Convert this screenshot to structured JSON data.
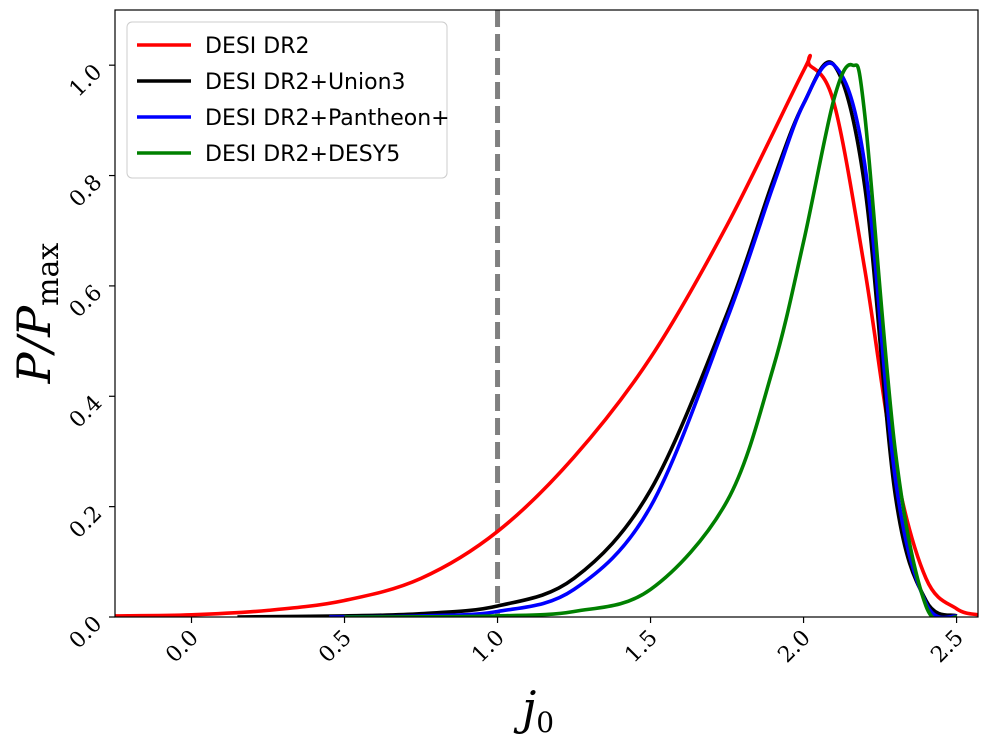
{
  "chart_data": {
    "type": "line",
    "xlabel": "j",
    "xlabel_sub": "0",
    "ylabel": "P/P",
    "ylabel_sub": "max",
    "xlim": [
      -0.25,
      2.57
    ],
    "ylim": [
      0.0,
      1.1
    ],
    "xticks": [
      "0.0",
      "0.5",
      "1.0",
      "1.5",
      "2.0",
      "2.5"
    ],
    "yticks": [
      "0.0",
      "0.2",
      "0.4",
      "0.6",
      "0.8",
      "1.0"
    ],
    "grid": false,
    "legend_position": "top-left",
    "reference_line": {
      "x": 1.0,
      "style": "dashed",
      "color": "#808080"
    },
    "series": [
      {
        "name": "DESI DR2",
        "color": "#ff0000",
        "x": [
          -0.25,
          0.0,
          0.25,
          0.5,
          0.75,
          1.0,
          1.25,
          1.5,
          1.75,
          2.0,
          2.02,
          2.1,
          2.2,
          2.3,
          2.4,
          2.5,
          2.57
        ],
        "y": [
          0.002,
          0.004,
          0.012,
          0.03,
          0.07,
          0.155,
          0.29,
          0.47,
          0.71,
          0.99,
          1.0,
          0.93,
          0.63,
          0.27,
          0.07,
          0.015,
          0.004
        ]
      },
      {
        "name": "DESI DR2+Union3",
        "color": "#000000",
        "x": [
          0.15,
          0.5,
          0.75,
          1.0,
          1.25,
          1.5,
          1.75,
          1.9,
          2.0,
          2.1,
          2.2,
          2.3,
          2.4,
          2.5
        ],
        "y": [
          0.0,
          0.002,
          0.006,
          0.02,
          0.07,
          0.23,
          0.55,
          0.79,
          0.93,
          1.0,
          0.78,
          0.22,
          0.03,
          0.002
        ]
      },
      {
        "name": "DESI DR2+Pantheon+",
        "color": "#0000ff",
        "x": [
          0.45,
          0.75,
          1.0,
          1.25,
          1.5,
          1.75,
          1.9,
          2.0,
          2.1,
          2.2,
          2.3,
          2.4,
          2.5
        ],
        "y": [
          0.0,
          0.002,
          0.01,
          0.05,
          0.2,
          0.54,
          0.78,
          0.93,
          1.0,
          0.82,
          0.25,
          0.025,
          0.001
        ]
      },
      {
        "name": "DESI DR2+DESY5",
        "color": "#008000",
        "x": [
          0.5,
          0.75,
          1.0,
          1.25,
          1.5,
          1.75,
          1.9,
          2.0,
          2.1,
          2.16,
          2.2,
          2.3,
          2.4,
          2.5
        ],
        "y": [
          0.0,
          0.0003,
          0.002,
          0.01,
          0.05,
          0.21,
          0.45,
          0.68,
          0.94,
          1.0,
          0.91,
          0.3,
          0.02,
          0.0
        ]
      }
    ]
  }
}
